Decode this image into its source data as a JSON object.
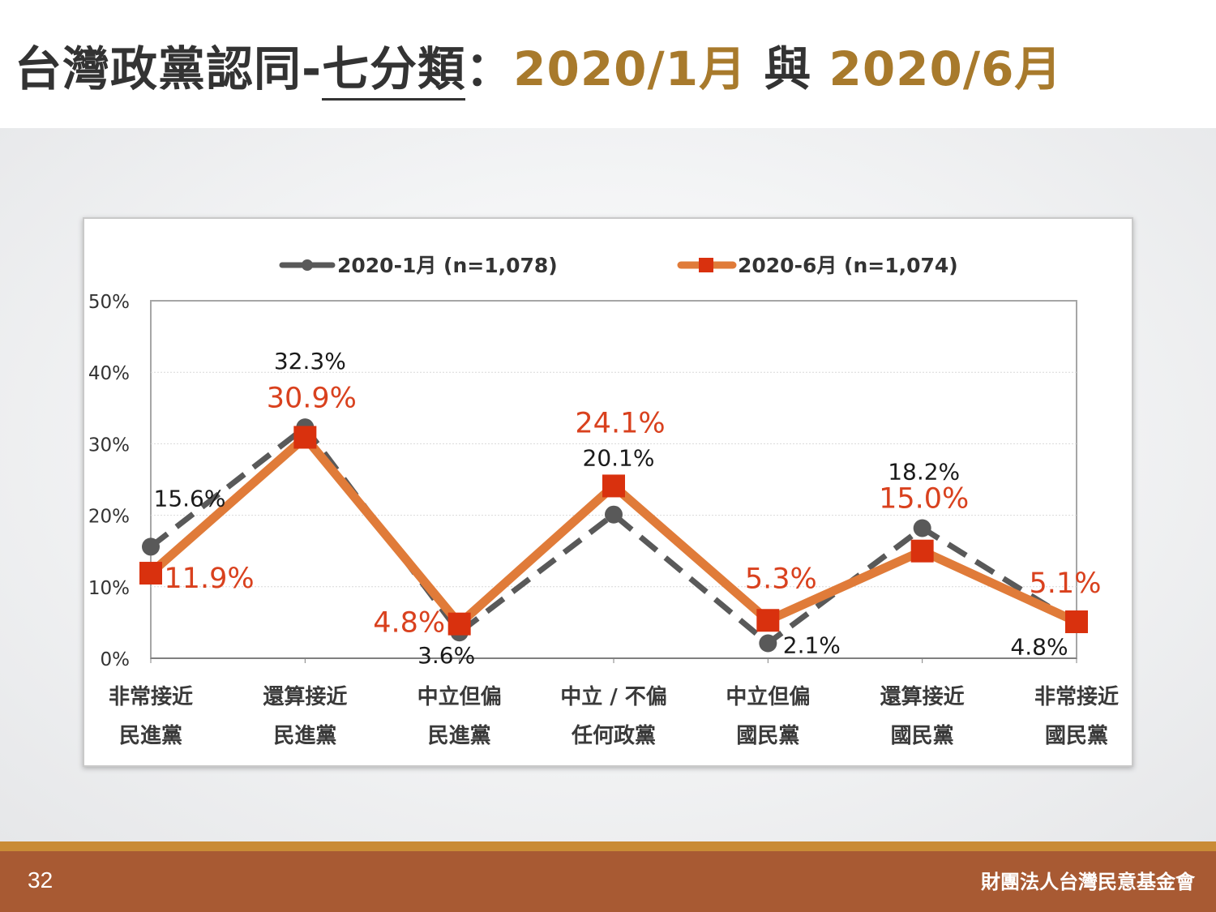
{
  "title": {
    "prefix": "台灣政黨認同-",
    "underlined": "七分類",
    "separator": "：",
    "period_a": "2020/1月",
    "connector": " 與 ",
    "period_b": "2020/6月"
  },
  "footer": {
    "page_number": "32",
    "organization": "財團法人台灣民意基金會"
  },
  "colors": {
    "series_jan": "#595959",
    "series_jun": "#e07b39",
    "marker_jun": "#d9310e",
    "label_jun": "#d9411e",
    "title_accent": "#a87a2c",
    "footer": "#a85a33"
  },
  "chart_data": {
    "type": "line",
    "ylim": [
      0,
      50
    ],
    "yticks": [
      "0%",
      "10%",
      "20%",
      "30%",
      "40%",
      "50%"
    ],
    "ytick_values": [
      0,
      10,
      20,
      30,
      40,
      50
    ],
    "grid": true,
    "legend_position": "top",
    "categories": [
      [
        "非常接近",
        "民進黨"
      ],
      [
        "還算接近",
        "民進黨"
      ],
      [
        "中立但偏",
        "民進黨"
      ],
      [
        "中立 / 不偏",
        "任何政黨"
      ],
      [
        "中立但偏",
        "國民黨"
      ],
      [
        "還算接近",
        "國民黨"
      ],
      [
        "非常接近",
        "國民黨"
      ]
    ],
    "series": [
      {
        "name": "2020-1月 (n=1,078)",
        "style": "dashed",
        "marker": "circle",
        "values": [
          15.6,
          32.3,
          3.6,
          20.1,
          2.1,
          18.2,
          4.8
        ],
        "labels": [
          "15.6%",
          "32.3%",
          "3.6%",
          "20.1%",
          "2.1%",
          "18.2%",
          "4.8%"
        ]
      },
      {
        "name": "2020-6月 (n=1,074)",
        "style": "solid",
        "marker": "square",
        "values": [
          11.9,
          30.9,
          4.8,
          24.1,
          5.3,
          15.0,
          5.1
        ],
        "labels": [
          "11.9%",
          "30.9%",
          "4.8%",
          "24.1%",
          "5.3%",
          "15.0%",
          "5.1%"
        ]
      }
    ]
  }
}
